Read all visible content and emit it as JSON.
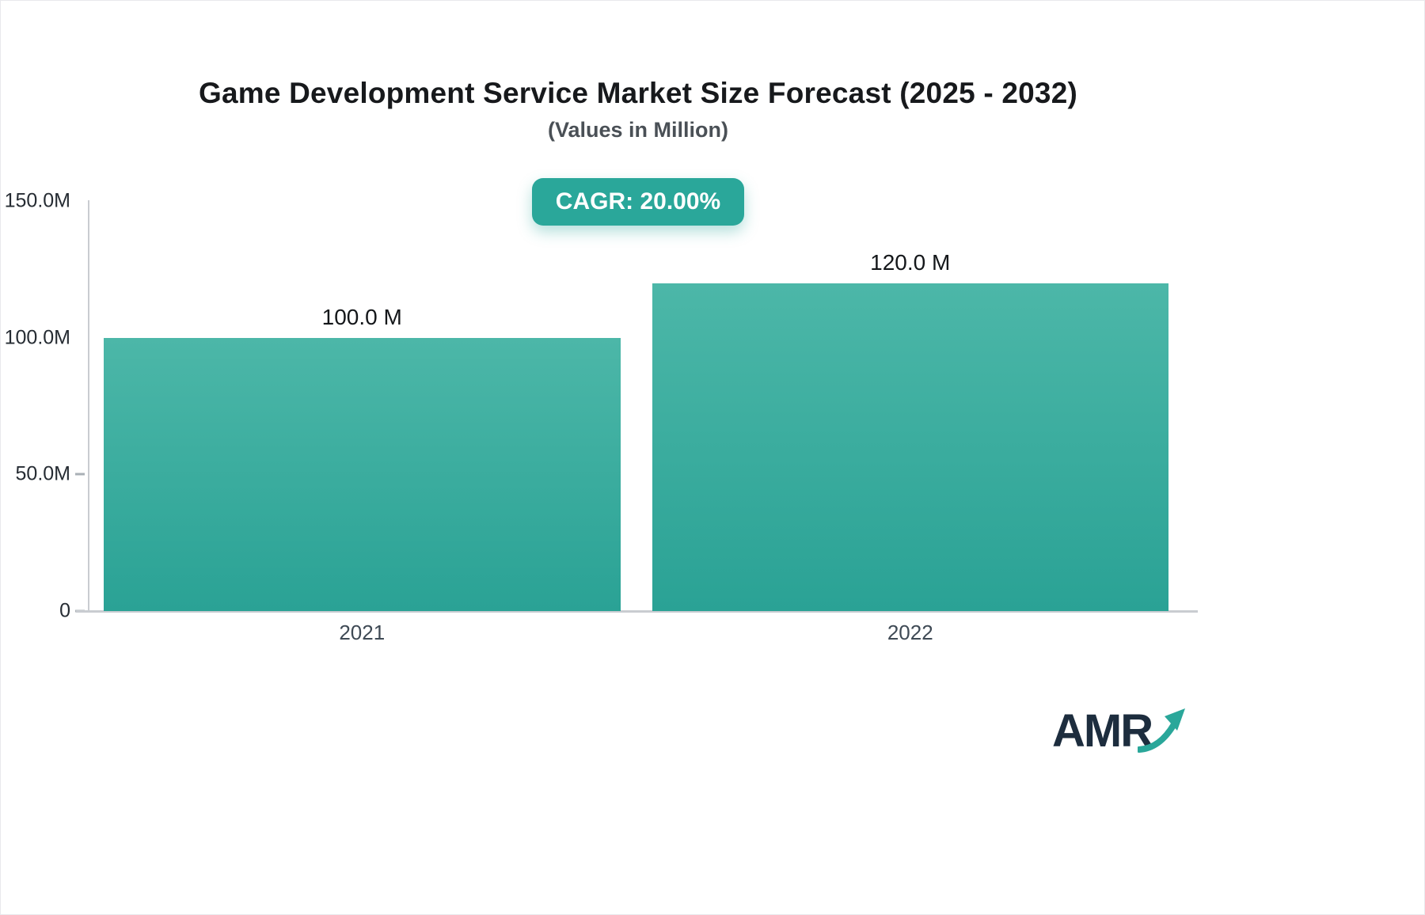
{
  "colors": {
    "accent": "#2aa79a",
    "bar_gradient_top": "#4cb7a8",
    "bar_gradient_bottom": "#2aa295",
    "axis_line": "#c9ccd1",
    "title_color": "#17191c",
    "subtitle_color": "#4a5056",
    "logo_text_color": "#1d2d3e"
  },
  "header": {
    "title": "Game Development Service Market Size Forecast (2025 - 2032)",
    "subtitle": "(Values in Million)",
    "cagr_badge": "CAGR: 20.00%"
  },
  "chart_data": {
    "type": "bar",
    "title": "Game Development Service Market Size Forecast (2025 - 2032)",
    "subtitle": "(Values in Million)",
    "unit": "Million",
    "cagr_percent": "20.00%",
    "categories": [
      "2021",
      "2022"
    ],
    "values": [
      100.0,
      120.0
    ],
    "value_labels": [
      "100.0 M",
      "120.0 M"
    ],
    "ylim": [
      0,
      150
    ],
    "yticks": [
      {
        "label": "0",
        "value": 0,
        "dash": true
      },
      {
        "label": "50.0M",
        "value": 50,
        "dash": true
      },
      {
        "label": "100.0M",
        "value": 100,
        "dash": false
      },
      {
        "label": "150.0M",
        "value": 150,
        "dash": false
      }
    ],
    "grid": false,
    "legend": "none"
  },
  "branding": {
    "logo_text": "AMR"
  }
}
